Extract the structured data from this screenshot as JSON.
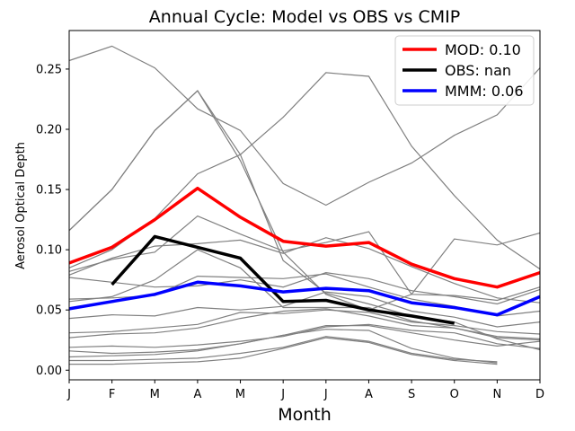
{
  "chart_data": {
    "type": "line",
    "title": "Annual Cycle: Model vs OBS vs CMIP",
    "xlabel": "Month",
    "ylabel": "Aerosol Optical Depth",
    "categories": [
      "J",
      "F",
      "M",
      "A",
      "M",
      "J",
      "J",
      "A",
      "S",
      "O",
      "N",
      "D"
    ],
    "ylim": [
      -0.008,
      0.282
    ],
    "yticks": [
      0.0,
      0.05,
      0.1,
      0.15,
      0.2,
      0.25
    ],
    "ytick_labels": [
      "0.00",
      "0.05",
      "0.10",
      "0.15",
      "0.20",
      "0.25"
    ],
    "legend_position": "top-right",
    "series": [
      {
        "name": "MOD: 0.10",
        "color": "#ff0000",
        "values": [
          0.089,
          0.102,
          0.125,
          0.151,
          0.127,
          0.107,
          0.103,
          0.106,
          0.088,
          0.076,
          0.069,
          0.081
        ]
      },
      {
        "name": "OBS: nan",
        "color": "#000000",
        "values": [
          null,
          0.071,
          0.111,
          0.102,
          0.093,
          0.057,
          0.058,
          0.05,
          0.045,
          0.039,
          null,
          null
        ]
      },
      {
        "name": "MMM: 0.06",
        "color": "#0000ff",
        "values": [
          0.051,
          0.057,
          0.063,
          0.073,
          0.07,
          0.065,
          0.068,
          0.066,
          0.056,
          0.052,
          0.046,
          0.061
        ]
      }
    ],
    "cmip_series": [
      [
        0.257,
        0.269,
        0.251,
        0.217,
        0.199,
        0.155,
        0.137,
        0.156,
        0.172,
        0.195,
        0.212,
        0.251
      ],
      [
        0.116,
        0.15,
        0.199,
        0.232,
        0.174,
        0.098,
        0.063,
        0.05,
        0.063,
        0.109,
        0.104,
        0.114
      ],
      [
        0.116,
        0.15,
        0.199,
        0.232,
        0.179,
        0.091,
        0.064,
        0.055,
        0.045,
        0.04,
        0.026,
        0.017
      ],
      [
        0.085,
        0.1,
        0.126,
        0.163,
        0.179,
        0.21,
        0.247,
        0.244,
        0.186,
        0.145,
        0.108,
        0.084
      ],
      [
        0.079,
        0.093,
        0.103,
        0.105,
        0.108,
        0.097,
        0.11,
        0.101,
        0.086,
        0.072,
        0.06,
        0.056
      ],
      [
        0.082,
        0.092,
        0.098,
        0.128,
        0.113,
        0.099,
        0.106,
        0.115,
        0.063,
        0.062,
        0.058,
        0.069
      ],
      [
        0.077,
        0.073,
        0.069,
        0.07,
        0.075,
        0.069,
        0.081,
        0.076,
        0.066,
        0.061,
        0.055,
        0.067
      ],
      [
        0.057,
        0.061,
        0.075,
        0.1,
        0.085,
        0.052,
        0.052,
        0.052,
        0.041,
        0.035,
        0.027,
        0.025
      ],
      [
        0.059,
        0.06,
        0.062,
        0.078,
        0.077,
        0.076,
        0.08,
        0.069,
        0.059,
        0.053,
        0.045,
        0.049
      ],
      [
        0.043,
        0.046,
        0.045,
        0.052,
        0.05,
        0.053,
        0.065,
        0.061,
        0.049,
        0.044,
        0.036,
        0.04
      ],
      [
        0.031,
        0.032,
        0.035,
        0.038,
        0.048,
        0.047,
        0.05,
        0.048,
        0.04,
        0.037,
        0.032,
        0.03
      ],
      [
        0.027,
        0.03,
        0.031,
        0.035,
        0.043,
        0.049,
        0.051,
        0.045,
        0.037,
        0.035,
        0.028,
        0.026
      ],
      [
        0.019,
        0.02,
        0.019,
        0.021,
        0.024,
        0.028,
        0.036,
        0.038,
        0.033,
        0.031,
        0.022,
        0.018
      ],
      [
        0.016,
        0.014,
        0.015,
        0.017,
        0.022,
        0.029,
        0.037,
        0.037,
        0.031,
        0.025,
        0.02,
        0.024
      ],
      [
        0.011,
        0.012,
        0.013,
        0.016,
        0.022,
        0.029,
        0.034,
        0.033,
        0.018,
        0.01,
        0.006,
        null
      ],
      [
        0.008,
        0.008,
        0.009,
        0.01,
        0.014,
        0.019,
        0.028,
        0.024,
        0.014,
        0.009,
        0.007,
        null
      ],
      [
        0.005,
        0.005,
        0.006,
        0.007,
        0.01,
        0.018,
        0.027,
        0.023,
        0.013,
        0.008,
        0.005,
        null
      ]
    ]
  }
}
